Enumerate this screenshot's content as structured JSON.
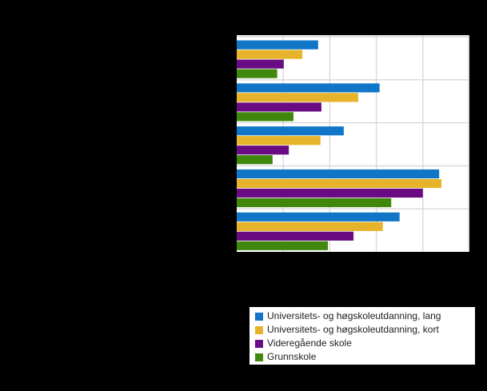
{
  "page": {
    "background_color": "#000000"
  },
  "chart_data": {
    "type": "bar",
    "orientation": "horizontal",
    "title": "",
    "categories": [
      "",
      "",
      "",
      "",
      ""
    ],
    "categories_note": "5 category groups; category labels, title and axis tick labels are not visible in the image (black area)",
    "series": [
      {
        "name": "Universitets- og høgskoleutdanning, lang",
        "color": "#1176C8",
        "values": [
          17.5,
          30.7,
          23.0,
          43.5,
          35.0
        ]
      },
      {
        "name": "Universitets- og høgskoleutdanning, kort",
        "color": "#E7B32A",
        "values": [
          14.1,
          26.1,
          18.0,
          44.0,
          31.4
        ]
      },
      {
        "name": "Videregående skole",
        "color": "#6A0B84",
        "values": [
          10.1,
          18.2,
          11.2,
          40.0,
          25.1
        ]
      },
      {
        "name": "Grunnskole",
        "color": "#40880D",
        "values": [
          8.7,
          12.2,
          7.7,
          33.2,
          19.6
        ]
      }
    ],
    "xlim": [
      0,
      50
    ],
    "grid": {
      "on": true,
      "step": 10,
      "color": "#D8D8D8"
    },
    "plot_background": "#FFFFFF",
    "axis_tick_labels_visible": false,
    "legend_position": "bottom-right",
    "legend_background": "#FFFFFF",
    "legend_text_color": "#202020"
  }
}
